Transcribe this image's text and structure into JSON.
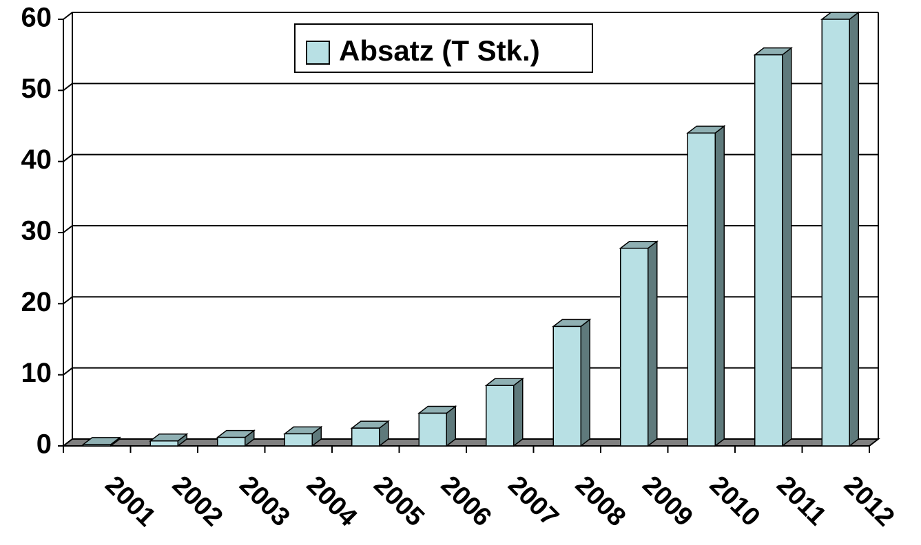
{
  "chart_data": {
    "type": "bar",
    "categories": [
      "2001",
      "2002",
      "2003",
      "2004",
      "2005",
      "2006",
      "2007",
      "2008",
      "2009",
      "2010",
      "2011",
      "2012"
    ],
    "series": [
      {
        "name": "Absatz (T Stk.)",
        "color": "#b8e0e4",
        "values": [
          0.2,
          0.7,
          1.2,
          1.7,
          2.5,
          4.6,
          8.5,
          16.8,
          27.8,
          44,
          55,
          60
        ]
      }
    ],
    "ylim": [
      0,
      60
    ],
    "yticks": [
      0,
      10,
      20,
      30,
      40,
      50,
      60
    ],
    "grid": true
  }
}
